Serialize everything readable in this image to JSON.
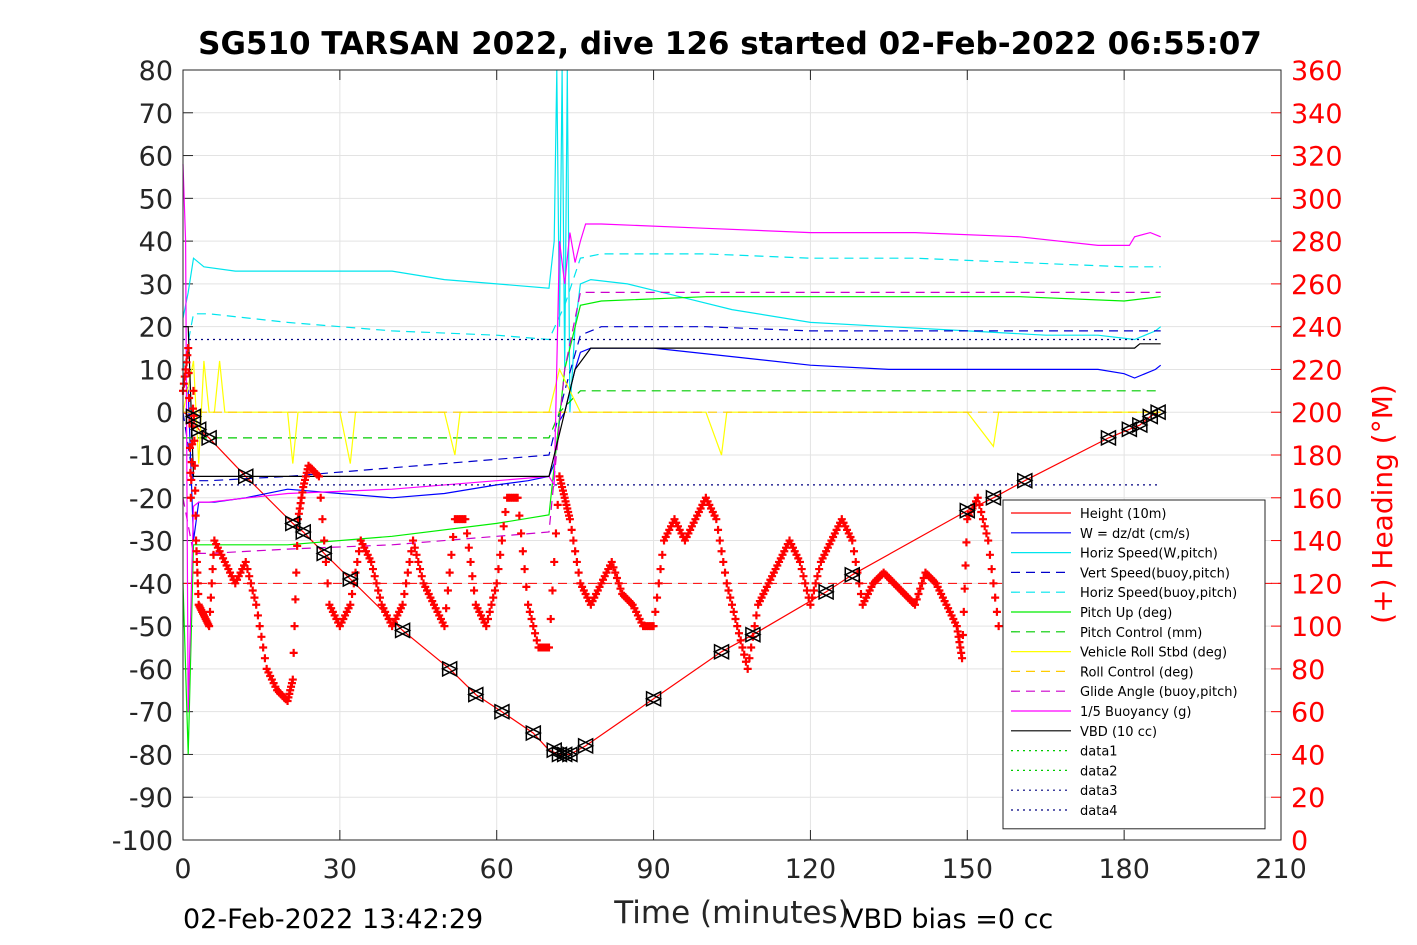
{
  "chart_data": {
    "type": "line",
    "title": "SG510 TARSAN 2022, dive 126 started 02-Feb-2022 06:55:07",
    "xlabel": "Time (minutes)",
    "ylabel": "",
    "ylabel_right": "(+) Heading (°M)",
    "xlim": [
      0,
      210
    ],
    "ylim": [
      -100,
      80
    ],
    "ylim_right": [
      0,
      360
    ],
    "xticks": [
      0,
      30,
      60,
      90,
      120,
      150,
      180,
      210
    ],
    "yticks": [
      80,
      70,
      60,
      50,
      40,
      30,
      20,
      10,
      0,
      -10,
      -20,
      -30,
      -40,
      -50,
      -60,
      -70,
      -80,
      -90,
      -100
    ],
    "yticks_right": [
      360,
      340,
      320,
      300,
      280,
      260,
      240,
      220,
      200,
      180,
      160,
      140,
      120,
      100,
      80,
      60,
      40,
      20,
      0
    ],
    "grid": true,
    "legend_position": "lower-right",
    "footer_left": "02-Feb-2022 13:42:29",
    "footer_right": "VBD bias =0 cc",
    "series": [
      {
        "name": "Height (10m)",
        "color": "#ff0000",
        "style": "solid",
        "x": [
          0,
          1.5,
          3,
          5,
          12,
          21,
          23,
          27,
          32,
          42,
          51,
          56,
          61,
          67,
          70,
          72,
          74,
          77,
          90,
          103,
          109,
          123,
          128,
          150,
          155,
          161,
          177,
          181,
          183,
          185,
          186.5
        ],
        "y": [
          0,
          -1,
          -4,
          -6,
          -15,
          -26,
          -28,
          -33,
          -39,
          -51,
          -60,
          -66,
          -70,
          -75,
          -79,
          -80,
          -80,
          -78,
          -67,
          -56,
          -52,
          -42,
          -38,
          -23,
          -20,
          -16,
          -6,
          -4,
          -3,
          -1,
          0
        ]
      },
      {
        "name": "W = dz/dt (cm/s)",
        "color": "#0000ff",
        "style": "solid",
        "x": [
          0,
          1,
          2,
          3,
          6,
          12,
          20,
          30,
          40,
          50,
          60,
          66,
          70,
          71,
          72,
          73,
          74,
          75,
          76,
          78,
          90,
          105,
          120,
          135,
          150,
          165,
          175,
          180,
          182,
          186,
          187
        ],
        "y": [
          8,
          5,
          -30,
          -21,
          -21,
          -20,
          -18,
          -19,
          -20,
          -19,
          -17,
          -16,
          -15,
          -12,
          -2,
          0,
          5,
          10,
          14,
          15,
          15,
          13,
          11,
          10,
          10,
          10,
          10,
          9,
          8,
          10,
          11
        ]
      },
      {
        "name": "Horiz Speed(W,pitch)",
        "color": "#00e5ee",
        "style": "solid",
        "x": [
          0,
          1,
          2,
          4,
          10,
          20,
          30,
          40,
          50,
          60,
          70,
          71,
          71.5,
          72,
          72.5,
          73,
          73.5,
          74,
          75,
          76,
          78,
          85,
          95,
          105,
          120,
          135,
          150,
          165,
          175,
          182,
          186,
          187
        ],
        "y": [
          22,
          28,
          36,
          34,
          33,
          33,
          33,
          33,
          31,
          30,
          29,
          40,
          80,
          20,
          80,
          10,
          80,
          0,
          20,
          30,
          31,
          30,
          27,
          24,
          21,
          20,
          19,
          18,
          18,
          17,
          19,
          20
        ]
      },
      {
        "name": "Vert Speed(buoy,pitch)",
        "color": "#0000cc",
        "style": "dashed",
        "x": [
          0,
          2,
          5,
          20,
          40,
          60,
          70,
          73,
          76,
          80,
          100,
          120,
          140,
          160,
          180,
          187
        ],
        "y": [
          0,
          -16,
          -16,
          -15,
          -13,
          -11,
          -10,
          5,
          18,
          20,
          20,
          19,
          19,
          19,
          19,
          19
        ]
      },
      {
        "name": "Horiz Speed(buoy,pitch)",
        "color": "#00e5ee",
        "style": "dashed",
        "x": [
          0,
          2,
          5,
          20,
          40,
          60,
          70,
          73,
          76,
          80,
          100,
          120,
          140,
          160,
          180,
          187
        ],
        "y": [
          10,
          23,
          23,
          21,
          19,
          18,
          17,
          25,
          36,
          37,
          37,
          36,
          36,
          35,
          34,
          34
        ]
      },
      {
        "name": "Pitch Up (deg)",
        "color": "#00ee00",
        "style": "solid",
        "x": [
          0,
          1,
          2,
          5,
          20,
          40,
          60,
          70,
          73,
          76,
          80,
          100,
          120,
          140,
          160,
          180,
          187
        ],
        "y": [
          -40,
          -80,
          -31,
          -31,
          -31,
          -29,
          -26,
          -24,
          10,
          25,
          26,
          27,
          27,
          27,
          27,
          26,
          27
        ]
      },
      {
        "name": "Pitch Control (mm)",
        "color": "#00cc00",
        "style": "dashed",
        "x": [
          0,
          2,
          20,
          40,
          60,
          70,
          72,
          76,
          80,
          100,
          120,
          140,
          160,
          180,
          187
        ],
        "y": [
          -6,
          -6,
          -6,
          -6,
          -6,
          -6,
          0,
          5,
          5,
          5,
          5,
          5,
          5,
          5,
          5
        ]
      },
      {
        "name": "Vehicle Roll Stbd (deg)",
        "color": "#ffff00",
        "style": "solid",
        "x": [
          0,
          2,
          3,
          4,
          5,
          6,
          7,
          8,
          20,
          21,
          22,
          30,
          32,
          33,
          34,
          50,
          52,
          53,
          54,
          70,
          72,
          74,
          76,
          78,
          90,
          100,
          103,
          104,
          105,
          120,
          130,
          150,
          155,
          156,
          157,
          165,
          180,
          186,
          187
        ],
        "y": [
          0,
          12,
          -12,
          12,
          0,
          0,
          12,
          0,
          0,
          -12,
          0,
          0,
          -12,
          0,
          0,
          0,
          -10,
          0,
          0,
          0,
          10,
          5,
          0,
          0,
          0,
          0,
          -10,
          0,
          0,
          0,
          0,
          0,
          -8,
          0,
          0,
          0,
          0,
          0,
          0
        ]
      },
      {
        "name": "Roll Control (deg)",
        "color": "#ffcc00",
        "style": "dashed",
        "x": [
          0,
          187
        ],
        "y": [
          0,
          0
        ]
      },
      {
        "name": "Glide Angle (buoy,pitch)",
        "color": "#cc00cc",
        "style": "dashed",
        "x": [
          0,
          2,
          5,
          20,
          40,
          60,
          70,
          73,
          76,
          80,
          100,
          120,
          140,
          160,
          180,
          187
        ],
        "y": [
          -20,
          -33,
          -33,
          -32,
          -31,
          -29,
          -28,
          10,
          28,
          28,
          28,
          28,
          28,
          28,
          28,
          28
        ]
      },
      {
        "name": "1/5 Buoyancy (g)",
        "color": "#ff00ff",
        "style": "solid",
        "x": [
          0,
          0.5,
          1,
          2,
          3,
          5,
          20,
          40,
          60,
          70,
          71,
          72,
          73,
          74,
          75,
          76,
          77,
          80,
          100,
          120,
          140,
          160,
          175,
          181,
          182,
          185,
          187
        ],
        "y": [
          58,
          40,
          -70,
          -22,
          -21,
          -21,
          -19,
          -18,
          -16,
          -15,
          -17,
          40,
          30,
          42,
          35,
          40,
          44,
          44,
          43,
          42,
          42,
          41,
          39,
          39,
          41,
          42,
          41
        ]
      },
      {
        "name": "VBD (10 cc)",
        "color": "#000000",
        "style": "solid",
        "x": [
          0,
          1,
          2,
          3,
          10,
          30,
          50,
          70,
          72,
          75,
          78,
          90,
          110,
          130,
          150,
          170,
          182,
          183,
          187
        ],
        "y": [
          20,
          20,
          -15,
          -15,
          -15,
          -15,
          -15,
          -15,
          -5,
          10,
          15,
          15,
          15,
          15,
          15,
          15,
          15,
          16,
          16
        ]
      },
      {
        "name": "data1",
        "color": "#00cc00",
        "style": "dotted",
        "x": [],
        "y": []
      },
      {
        "name": "data2",
        "color": "#00cc00",
        "style": "dotted",
        "x": [],
        "y": []
      },
      {
        "name": "data3",
        "color": "#000080",
        "style": "dotted",
        "x": [
          0,
          187
        ],
        "y": [
          17,
          17
        ]
      },
      {
        "name": "data4",
        "color": "#000080",
        "style": "dotted",
        "x": [
          0,
          187
        ],
        "y": [
          -17,
          -17
        ]
      }
    ],
    "heading_series": {
      "name": "Heading",
      "color": "#ff0000",
      "marker": "+",
      "axis": "right",
      "x": [
        0,
        1,
        1.5,
        2,
        2.5,
        3,
        4,
        5,
        6,
        8,
        10,
        12,
        14,
        16,
        18,
        20,
        21,
        22,
        23,
        24,
        26,
        28,
        30,
        32,
        34,
        36,
        38,
        40,
        42,
        44,
        46,
        48,
        50,
        52,
        54,
        56,
        58,
        60,
        62,
        64,
        66,
        68,
        70,
        72,
        73,
        74,
        76,
        78,
        80,
        82,
        84,
        86,
        88,
        90,
        92,
        94,
        96,
        98,
        100,
        102,
        104,
        106,
        108,
        110,
        112,
        114,
        116,
        118,
        120,
        122,
        124,
        126,
        128,
        130,
        132,
        134,
        136,
        138,
        140,
        142,
        144,
        146,
        148,
        149,
        150,
        152,
        154,
        156
      ],
      "y": [
        210,
        230,
        160,
        210,
        140,
        110,
        105,
        100,
        140,
        130,
        120,
        130,
        110,
        80,
        70,
        65,
        75,
        150,
        165,
        175,
        170,
        110,
        100,
        110,
        140,
        130,
        110,
        100,
        110,
        140,
        120,
        110,
        100,
        150,
        150,
        110,
        100,
        120,
        160,
        160,
        110,
        90,
        90,
        170,
        160,
        150,
        120,
        110,
        120,
        130,
        115,
        110,
        100,
        100,
        140,
        150,
        140,
        150,
        160,
        150,
        120,
        100,
        80,
        110,
        120,
        130,
        140,
        130,
        110,
        130,
        140,
        150,
        140,
        110,
        120,
        125,
        120,
        115,
        110,
        125,
        120,
        110,
        100,
        85,
        150,
        160,
        140,
        100
      ]
    },
    "markers": {
      "name": "Height sample markers",
      "x": [
        2,
        3,
        5,
        12,
        21,
        23,
        27,
        32,
        42,
        51,
        56,
        61,
        67,
        71,
        72,
        73,
        74,
        77,
        90,
        103,
        109,
        123,
        128,
        150,
        155,
        161,
        177,
        181,
        183,
        185,
        186.5
      ],
      "y": [
        -1,
        -4,
        -6,
        -15,
        -26,
        -28,
        -33,
        -39,
        -51,
        -60,
        -66,
        -70,
        -75,
        -79,
        -80,
        -80,
        -80,
        -78,
        -67,
        -56,
        -52,
        -42,
        -38,
        -23,
        -20,
        -16,
        -6,
        -4,
        -3,
        -1,
        0
      ]
    },
    "reference_line": {
      "y": -40,
      "color": "#ff0000",
      "style": "dashed"
    }
  }
}
